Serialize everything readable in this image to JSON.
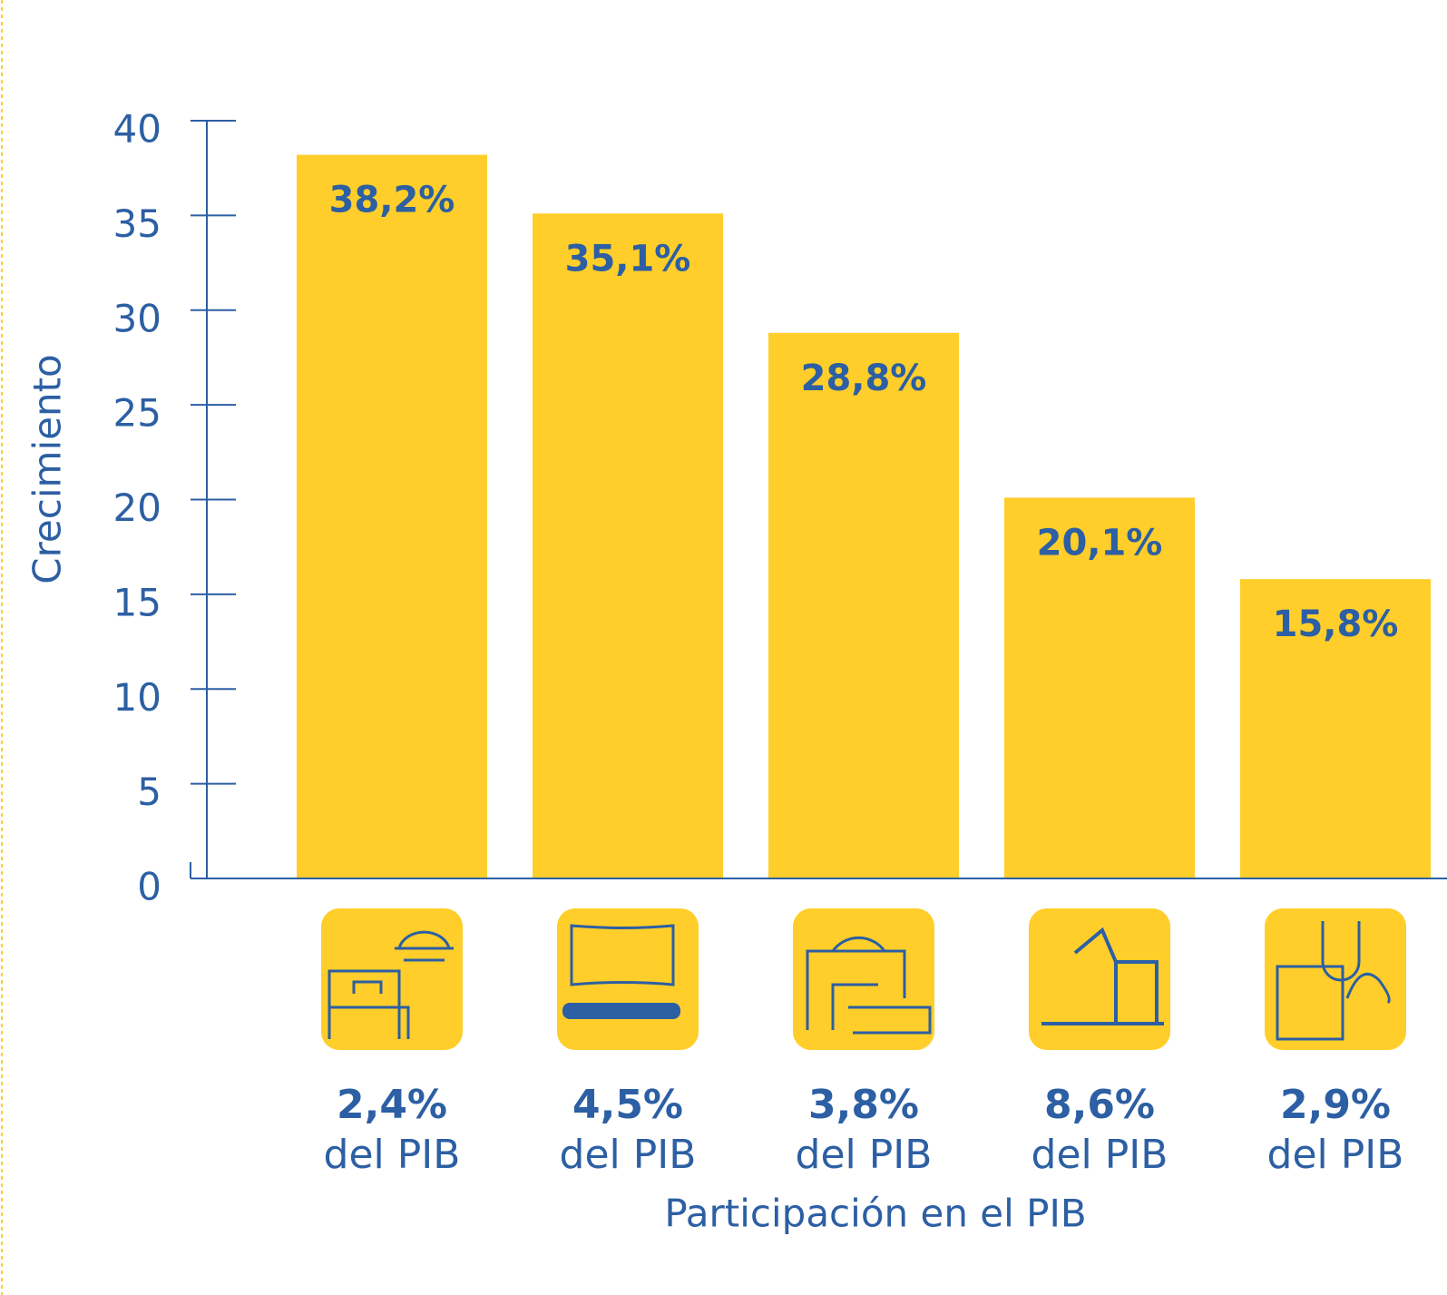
{
  "chart_data": {
    "type": "bar",
    "categories": [
      "2,4%",
      "4,5%",
      "3,8%",
      "8,6%",
      "2,9%"
    ],
    "category_suffix": "del PIB",
    "values": [
      38.2,
      35.1,
      28.8,
      20.1,
      15.8
    ],
    "value_labels": [
      "38,2%",
      "35,1%",
      "28,8%",
      "20,1%",
      "15,8%"
    ],
    "color": "#FFCE2A",
    "ylim": [
      0,
      40
    ],
    "yticks": [
      0,
      5,
      10,
      15,
      20,
      25,
      30,
      35,
      40
    ],
    "y_label": "Crecimiento",
    "x_label": "Participación en el PIB",
    "grid": false
  }
}
